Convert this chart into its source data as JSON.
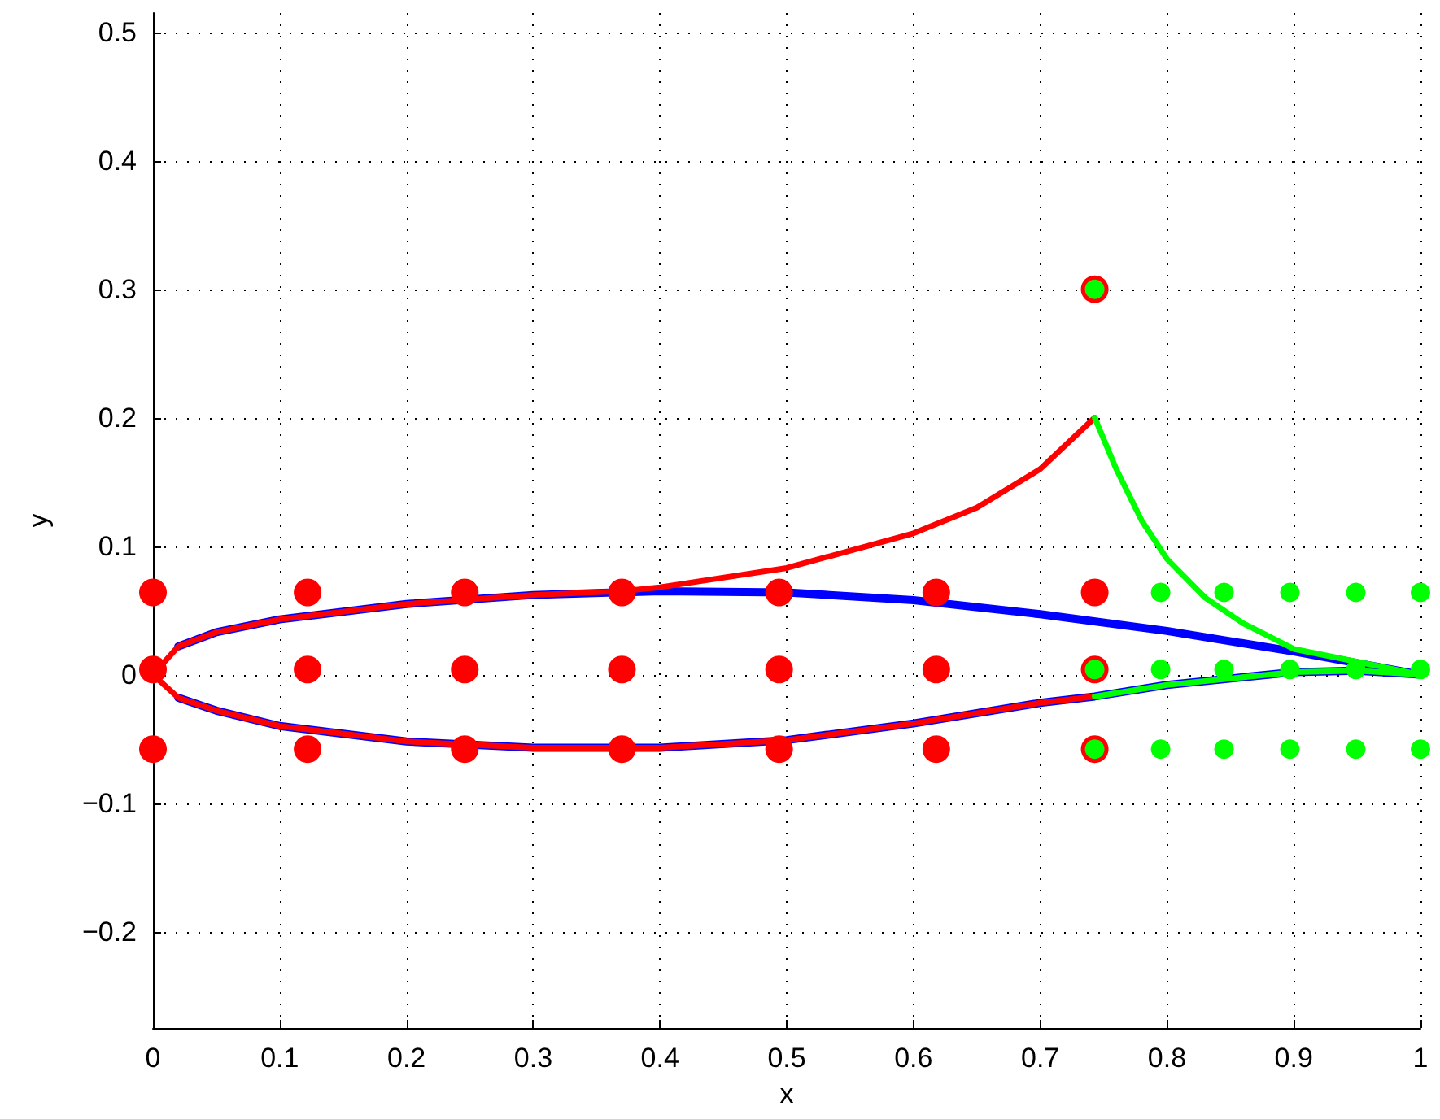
{
  "chart_data": {
    "type": "line",
    "xlabel": "x",
    "ylabel": "y",
    "xlim": [
      0,
      1
    ],
    "ylim": [
      -0.275,
      0.515
    ],
    "xticks": [
      0,
      0.1,
      0.2,
      0.3,
      0.4,
      0.5,
      0.6,
      0.7,
      0.8,
      0.9,
      1
    ],
    "yticks": [
      -0.2,
      -0.1,
      0,
      0.1,
      0.2,
      0.3,
      0.4,
      0.5
    ],
    "grid": true,
    "marker": "none",
    "line_style": "solid",
    "series": [
      {
        "color": "#0000ff",
        "x": [
          0.02,
          0.05,
          0.1,
          0.2,
          0.3,
          0.4,
          0.5,
          0.6,
          0.7,
          0.8,
          0.9,
          1
        ],
        "values": [
          0.022,
          0.033,
          0.043,
          0.055,
          0.062,
          0.065,
          0.064,
          0.058,
          0.047,
          0.034,
          0.018,
          0
        ]
      },
      {
        "color": "#0000ff",
        "x": [
          0.02,
          0.05,
          0.1,
          0.2,
          0.3,
          0.4,
          0.5,
          0.6,
          0.7,
          0.743,
          0.8,
          0.9,
          0.95,
          1
        ],
        "values": [
          -0.018,
          -0.028,
          -0.04,
          -0.052,
          -0.057,
          -0.057,
          -0.051,
          -0.038,
          -0.022,
          -0.017,
          -0.008,
          0.002,
          0.003,
          0
        ]
      },
      {
        "color": "#ff0000",
        "x": [
          0,
          0.02,
          0.05,
          0.1,
          0.2,
          0.3,
          0.37,
          0.4,
          0.5,
          0.6,
          0.65,
          0.7,
          0.743
        ],
        "values": [
          0,
          0.022,
          0.033,
          0.043,
          0.055,
          0.062,
          0.065,
          0.068,
          0.083,
          0.11,
          0.13,
          0.16,
          0.2
        ]
      },
      {
        "color": "#ff0000",
        "x": [
          0,
          0.02,
          0.05,
          0.1,
          0.2,
          0.3,
          0.4,
          0.5,
          0.6,
          0.7,
          0.743
        ],
        "values": [
          0,
          -0.018,
          -0.028,
          -0.04,
          -0.052,
          -0.057,
          -0.057,
          -0.051,
          -0.038,
          -0.022,
          -0.017
        ]
      },
      {
        "color": "#00ff00",
        "x": [
          0.743,
          0.76,
          0.78,
          0.8,
          0.83,
          0.86,
          0.9,
          0.95,
          1
        ],
        "values": [
          0.2,
          0.16,
          0.12,
          0.09,
          0.06,
          0.04,
          0.02,
          0.01,
          0
        ]
      },
      {
        "color": "#00ff00",
        "x": [
          0.743,
          0.8,
          0.9,
          0.95,
          1
        ],
        "values": [
          -0.017,
          -0.008,
          0.002,
          0.003,
          0
        ]
      },
      {
        "type": "scatter",
        "marker": "circle",
        "color": "#ff0000",
        "x": [
          0,
          0.122,
          0.246,
          0.37,
          0.494,
          0.618,
          0.743,
          0,
          0.122,
          0.246,
          0.37,
          0.494,
          0.618,
          0.743,
          0,
          0.122,
          0.246,
          0.37,
          0.494,
          0.618,
          0.743,
          0.743
        ],
        "values": [
          0.064,
          0.064,
          0.064,
          0.064,
          0.064,
          0.064,
          0.064,
          0.004,
          0.004,
          0.004,
          0.004,
          0.004,
          0.004,
          0.004,
          -0.058,
          -0.058,
          -0.058,
          -0.058,
          -0.058,
          -0.058,
          -0.058,
          0.3
        ]
      },
      {
        "type": "scatter",
        "marker": "circle",
        "color": "#00ff00",
        "x": [
          0.795,
          0.845,
          0.897,
          0.949,
          1,
          0.743,
          0.795,
          0.845,
          0.897,
          0.949,
          1,
          0.743,
          0.795,
          0.845,
          0.897,
          0.949,
          1,
          0.743
        ],
        "values": [
          0.064,
          0.064,
          0.064,
          0.064,
          0.064,
          0.004,
          0.004,
          0.004,
          0.004,
          0.004,
          0.004,
          -0.058,
          -0.058,
          -0.058,
          -0.058,
          -0.058,
          -0.058,
          0.3
        ]
      }
    ]
  }
}
